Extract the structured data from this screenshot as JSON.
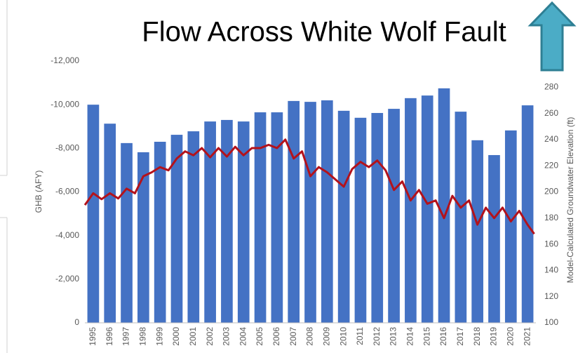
{
  "chart_data": {
    "type": "bar",
    "title": "Flow Across White Wolf Fault",
    "y_label": "GHB (AFY)",
    "y2_label": "Model-Calculated Groundwater Elevation (ft)",
    "categories": [
      "1995",
      "1996",
      "1997",
      "1998",
      "1999",
      "2000",
      "2001",
      "2002",
      "2003",
      "2004",
      "2005",
      "2006",
      "2007",
      "2008",
      "2009",
      "2010",
      "2011",
      "2012",
      "2013",
      "2014",
      "2015",
      "2016",
      "2017",
      "2018",
      "2019",
      "2020",
      "2021"
    ],
    "values": [
      -10000,
      -9130,
      -8240,
      -7820,
      -8300,
      -8620,
      -8780,
      -9230,
      -9300,
      -9230,
      -9650,
      -9650,
      -10170,
      -10130,
      -10200,
      -9720,
      -9400,
      -9620,
      -9810,
      -10300,
      -10420,
      -10750,
      -9680,
      -8370,
      -7690,
      -8820,
      -9970
    ],
    "color": "#4472c4",
    "ylim": [
      0,
      -12000
    ],
    "yticks": [
      0,
      {
        "value": -2000,
        "label": "-2,000"
      },
      {
        "value": -4000,
        "label": "-4,000"
      },
      {
        "value": -6000,
        "label": "-6,000"
      },
      {
        "value": -8000,
        "label": "-8,000"
      },
      {
        "value": -10000,
        "label": "-10,000"
      },
      {
        "value": -12000,
        "label": "-12,000"
      }
    ],
    "y2lim": [
      100,
      300
    ],
    "y2ticks": [
      100,
      120,
      140,
      160,
      180,
      200,
      220,
      240,
      260,
      280
    ],
    "grid": false,
    "series": [
      {
        "axis": "y2",
        "color": "#b3121b",
        "x": [
          1994.5,
          1995,
          1995.5,
          1996,
          1996.5,
          1997,
          1997.5,
          1998,
          1998.5,
          1999,
          1999.5,
          2000,
          2000.5,
          2001,
          2001.5,
          2002,
          2002.5,
          2003,
          2003.5,
          2004,
          2004.5,
          2005,
          2005.5,
          2006,
          2006.5,
          2007,
          2007.5,
          2008,
          2008.5,
          2009,
          2009.5,
          2010,
          2010.5,
          2011,
          2011.5,
          2012,
          2012.5,
          2013,
          2013.5,
          2014,
          2014.5,
          2015,
          2015.5,
          2016,
          2016.5,
          2017,
          2017.5,
          2018,
          2018.5,
          2019,
          2019.5,
          2020,
          2020.5,
          2021,
          2021.4
        ],
        "values": [
          190,
          199,
          194.5,
          199,
          195,
          202.5,
          199,
          212,
          215,
          219,
          216.5,
          225.5,
          231,
          228,
          233.5,
          226.5,
          233.5,
          227,
          234.5,
          228,
          233.5,
          233.5,
          236,
          233.5,
          240,
          225.5,
          231,
          212,
          219,
          215,
          209.5,
          204,
          217.5,
          223,
          219,
          224,
          216.5,
          201.5,
          208,
          193.5,
          201.5,
          191,
          193.5,
          180,
          197,
          188,
          193.5,
          175,
          188,
          180,
          188,
          177.5,
          185.5,
          175,
          168
        ]
      }
    ]
  }
}
